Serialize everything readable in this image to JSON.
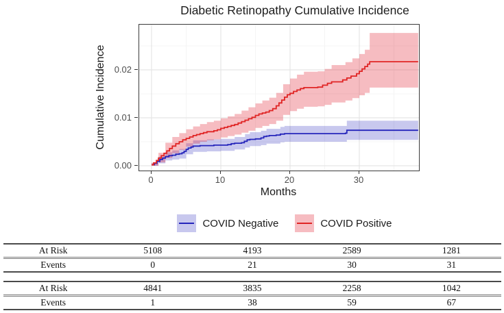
{
  "chart_data": {
    "type": "line",
    "subtype": "step-cumulative-incidence-with-confidence-bands",
    "title": "Diabetic Retinopathy Cumulative Incidence",
    "xlabel": "Months",
    "ylabel": "Cumulative Incidence",
    "xlim": [
      -1.8,
      38.6
    ],
    "ylim": [
      0,
      0.0294
    ],
    "grid": true,
    "legend_position": "bottom",
    "x_major_ticks": [
      0,
      10,
      20,
      30
    ],
    "x_tick_labels": [
      "0",
      "10",
      "20",
      "30"
    ],
    "x_minor_ticks": [
      5,
      15,
      25,
      35
    ],
    "y_major_ticks": [
      0.0,
      0.01,
      0.02
    ],
    "y_tick_labels": [
      "0.00",
      "0.01",
      "0.02"
    ],
    "y_minor_ticks": [
      0.005,
      0.015,
      0.025
    ],
    "series": [
      {
        "name": "COVID Negative",
        "line_color": "#2525bb",
        "band_color": "rgba(37,37,187,0.25)",
        "steps": [
          [
            0,
            0.0002
          ],
          [
            0.4,
            0.0005
          ],
          [
            0.8,
            0.0009
          ],
          [
            1.2,
            0.0013
          ],
          [
            1.6,
            0.0016
          ],
          [
            2,
            0.0019
          ],
          [
            2.5,
            0.0021
          ],
          [
            3,
            0.0022
          ],
          [
            3.5,
            0.0024
          ],
          [
            4,
            0.0025
          ],
          [
            4.4,
            0.0027
          ],
          [
            4.7,
            0.003
          ],
          [
            5,
            0.0034
          ],
          [
            5.3,
            0.0037
          ],
          [
            5.7,
            0.0039
          ],
          [
            6,
            0.0041
          ],
          [
            7,
            0.0042
          ],
          [
            9,
            0.0043
          ],
          [
            11,
            0.0044
          ],
          [
            11.5,
            0.0046
          ],
          [
            12,
            0.0047
          ],
          [
            13,
            0.0048
          ],
          [
            13.4,
            0.0051
          ],
          [
            13.8,
            0.0054
          ],
          [
            14.2,
            0.0055
          ],
          [
            15,
            0.0056
          ],
          [
            15.8,
            0.0058
          ],
          [
            16.2,
            0.0061
          ],
          [
            16.6,
            0.0062
          ],
          [
            17,
            0.0063
          ],
          [
            18,
            0.0064
          ],
          [
            18.6,
            0.0066
          ],
          [
            19.2,
            0.0067
          ],
          [
            28,
            0.0068
          ],
          [
            28.2,
            0.0074
          ],
          [
            38.5,
            0.0074
          ]
        ],
        "band": [
          [
            0,
            0,
            0.0005
          ],
          [
            1,
            0.0005,
            0.0019
          ],
          [
            2,
            0.0011,
            0.0028
          ],
          [
            3,
            0.0013,
            0.0032
          ],
          [
            4,
            0.0015,
            0.0035
          ],
          [
            5,
            0.0024,
            0.0047
          ],
          [
            6,
            0.0029,
            0.0053
          ],
          [
            8,
            0.003,
            0.0055
          ],
          [
            10,
            0.0031,
            0.0056
          ],
          [
            12,
            0.0034,
            0.006
          ],
          [
            13.5,
            0.0038,
            0.0066
          ],
          [
            14.2,
            0.0041,
            0.007
          ],
          [
            15.8,
            0.0043,
            0.0073
          ],
          [
            16.6,
            0.0046,
            0.0077
          ],
          [
            18.6,
            0.0049,
            0.0081
          ],
          [
            19.2,
            0.005,
            0.0083
          ],
          [
            28.2,
            0.0054,
            0.0094
          ],
          [
            38.5,
            0.0054,
            0.0094
          ]
        ]
      },
      {
        "name": "COVID Positive",
        "line_color": "#e02424",
        "band_color": "rgba(226,34,49,0.3)",
        "steps": [
          [
            0,
            0.0002
          ],
          [
            0.3,
            0.0006
          ],
          [
            0.7,
            0.0011
          ],
          [
            1,
            0.0016
          ],
          [
            1.4,
            0.0021
          ],
          [
            1.8,
            0.0026
          ],
          [
            2.2,
            0.0031
          ],
          [
            2.6,
            0.0036
          ],
          [
            3,
            0.0041
          ],
          [
            3.5,
            0.0046
          ],
          [
            4,
            0.005
          ],
          [
            4.5,
            0.0054
          ],
          [
            5,
            0.0057
          ],
          [
            5.5,
            0.006
          ],
          [
            6,
            0.0063
          ],
          [
            6.5,
            0.0065
          ],
          [
            7,
            0.0067
          ],
          [
            7.5,
            0.0069
          ],
          [
            8,
            0.0071
          ],
          [
            9,
            0.0073
          ],
          [
            9.5,
            0.0075
          ],
          [
            10,
            0.0078
          ],
          [
            10.5,
            0.008
          ],
          [
            11,
            0.0082
          ],
          [
            11.5,
            0.0084
          ],
          [
            12,
            0.0086
          ],
          [
            12.5,
            0.0089
          ],
          [
            13,
            0.0092
          ],
          [
            13.5,
            0.0095
          ],
          [
            14,
            0.0098
          ],
          [
            14.5,
            0.0101
          ],
          [
            15,
            0.0105
          ],
          [
            15.5,
            0.0108
          ],
          [
            16,
            0.011
          ],
          [
            16.5,
            0.0112
          ],
          [
            17,
            0.0115
          ],
          [
            17.5,
            0.0119
          ],
          [
            18,
            0.0125
          ],
          [
            18.4,
            0.0131
          ],
          [
            18.8,
            0.0137
          ],
          [
            19.2,
            0.0143
          ],
          [
            19.6,
            0.0148
          ],
          [
            20,
            0.0151
          ],
          [
            20.5,
            0.0155
          ],
          [
            21,
            0.0158
          ],
          [
            21.5,
            0.0161
          ],
          [
            22,
            0.0163
          ],
          [
            24,
            0.0164
          ],
          [
            24.7,
            0.0168
          ],
          [
            25.4,
            0.0172
          ],
          [
            26,
            0.0175
          ],
          [
            27.6,
            0.0179
          ],
          [
            28.2,
            0.0183
          ],
          [
            28.8,
            0.0187
          ],
          [
            29.6,
            0.0192
          ],
          [
            30,
            0.0197
          ],
          [
            30.4,
            0.0202
          ],
          [
            30.8,
            0.0207
          ],
          [
            31.2,
            0.0212
          ],
          [
            31.5,
            0.0217
          ],
          [
            38.5,
            0.0217
          ]
        ],
        "band": [
          [
            0,
            0,
            0.0006
          ],
          [
            1,
            0.0007,
            0.0027
          ],
          [
            2,
            0.0016,
            0.0048
          ],
          [
            3,
            0.0026,
            0.006
          ],
          [
            4,
            0.0033,
            0.0068
          ],
          [
            5,
            0.004,
            0.0076
          ],
          [
            6,
            0.0046,
            0.0082
          ],
          [
            7,
            0.005,
            0.0087
          ],
          [
            8,
            0.0053,
            0.0091
          ],
          [
            9,
            0.0055,
            0.0094
          ],
          [
            10,
            0.0059,
            0.0099
          ],
          [
            11,
            0.0062,
            0.0103
          ],
          [
            12,
            0.0065,
            0.0108
          ],
          [
            13,
            0.0069,
            0.0115
          ],
          [
            14,
            0.0073,
            0.0122
          ],
          [
            15,
            0.0079,
            0.013
          ],
          [
            16,
            0.0083,
            0.0136
          ],
          [
            17,
            0.0087,
            0.0142
          ],
          [
            18,
            0.0094,
            0.0152
          ],
          [
            19,
            0.0106,
            0.017
          ],
          [
            20,
            0.0114,
            0.0182
          ],
          [
            21,
            0.0119,
            0.019
          ],
          [
            22,
            0.0123,
            0.0196
          ],
          [
            24,
            0.0124,
            0.0197
          ],
          [
            25,
            0.0127,
            0.0202
          ],
          [
            26,
            0.0132,
            0.021
          ],
          [
            28,
            0.0136,
            0.0216
          ],
          [
            29,
            0.0141,
            0.0224
          ],
          [
            30,
            0.0147,
            0.0233
          ],
          [
            30.8,
            0.0152,
            0.0242
          ],
          [
            31.5,
            0.0163,
            0.0277
          ],
          [
            38.5,
            0.0163,
            0.0277
          ]
        ]
      }
    ]
  },
  "risk_tables": [
    {
      "rows": [
        {
          "label": "At Risk",
          "values": [
            "5108",
            "4193",
            "2589",
            "1281"
          ]
        },
        {
          "label": "Events",
          "values": [
            "0",
            "21",
            "30",
            "31"
          ]
        }
      ]
    },
    {
      "rows": [
        {
          "label": "At Risk",
          "values": [
            "4841",
            "3835",
            "2258",
            "1042"
          ]
        },
        {
          "label": "Events",
          "values": [
            "1",
            "38",
            "59",
            "67"
          ]
        }
      ]
    }
  ]
}
